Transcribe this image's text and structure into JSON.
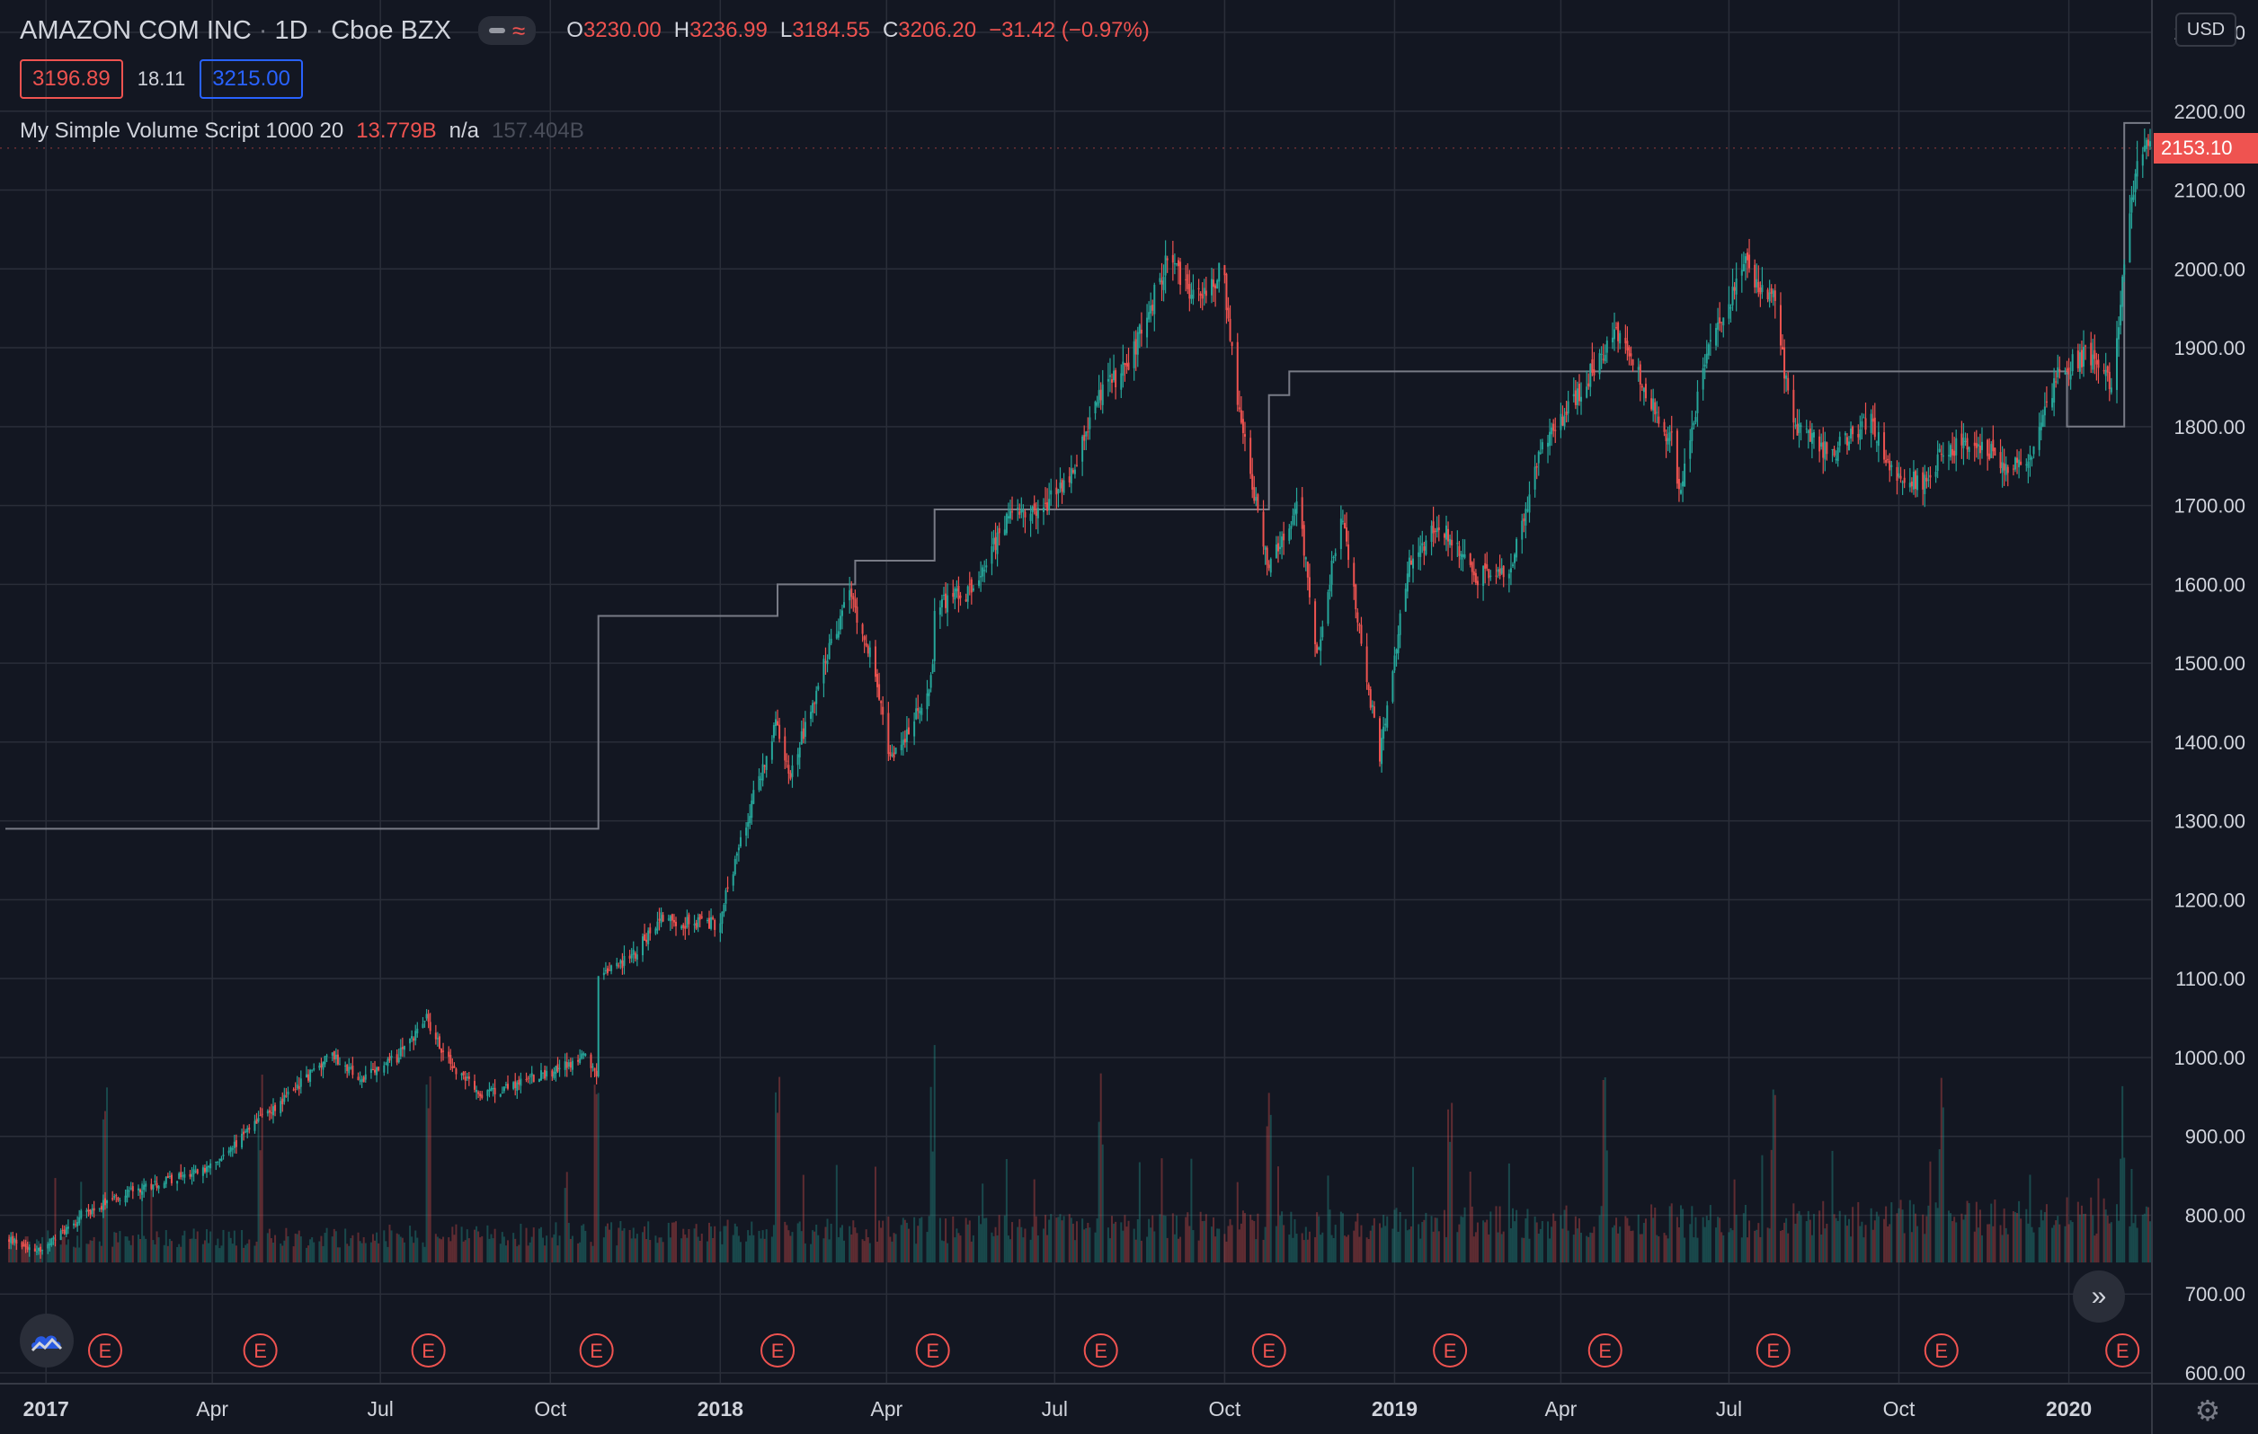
{
  "header": {
    "symbol": "AMAZON COM INC",
    "interval": "1D",
    "exchange": "Cboe BZX",
    "ohlc": {
      "o_label": "O",
      "o": "3230.00",
      "h_label": "H",
      "h": "3236.99",
      "l_label": "L",
      "l": "3184.55",
      "c_label": "C",
      "c": "3206.20",
      "change": "−31.42 (−0.97%)"
    }
  },
  "quote": {
    "bid": "3196.89",
    "spread": "18.11",
    "ask": "3215.00"
  },
  "study": {
    "name": "My Simple Volume Script 1000 20",
    "value1": "13.779B",
    "value2": "n/a",
    "value3": "157.404B"
  },
  "currency": "USD",
  "last_price_label": "2153.10",
  "colors": {
    "background": "#131722",
    "grid": "#2a2e39",
    "up": "#26a69a",
    "down": "#ef5350",
    "text": "#d1d4dc",
    "step_line": "#787b86"
  },
  "icons": {
    "logo": "cloud-logo-icon",
    "scroll": "double-chevron-right-icon",
    "settings": "gear-icon"
  },
  "chart_data": {
    "type": "candlestick",
    "title": "",
    "ylim": [
      600,
      2300
    ],
    "yticks": [
      "2300.00",
      "2200.00",
      "2100.00",
      "2000.00",
      "1900.00",
      "1800.00",
      "1700.00",
      "1600.00",
      "1500.00",
      "1400.00",
      "1300.00",
      "1200.00",
      "1100.00",
      "1000.00",
      "900.00",
      "800.00",
      "700.00",
      "600.00"
    ],
    "x_axis": {
      "labels": [
        "2017",
        "Apr",
        "Jul",
        "Oct",
        "2018",
        "Apr",
        "Jul",
        "Oct",
        "2019",
        "Apr",
        "Jul",
        "Oct",
        "2020"
      ],
      "label_dates": [
        "2017-01-01",
        "2017-04-01",
        "2017-07-01",
        "2017-10-01",
        "2018-01-01",
        "2018-04-01",
        "2018-07-01",
        "2018-10-01",
        "2019-01-01",
        "2019-04-01",
        "2019-07-01",
        "2019-10-01",
        "2020-01-01"
      ],
      "range": [
        "2016-12-10",
        "2020-02-14"
      ]
    },
    "price_path": [
      [
        "2016-12-10",
        770
      ],
      [
        "2016-12-30",
        755
      ],
      [
        "2017-01-20",
        800
      ],
      [
        "2017-02-15",
        830
      ],
      [
        "2017-03-15",
        850
      ],
      [
        "2017-03-31",
        860
      ],
      [
        "2017-04-20",
        905
      ],
      [
        "2017-05-15",
        960
      ],
      [
        "2017-06-05",
        1005
      ],
      [
        "2017-06-20",
        970
      ],
      [
        "2017-07-10",
        1000
      ],
      [
        "2017-07-26",
        1050
      ],
      [
        "2017-08-05",
        1000
      ],
      [
        "2017-08-25",
        950
      ],
      [
        "2017-09-15",
        970
      ],
      [
        "2017-10-05",
        985
      ],
      [
        "2017-10-20",
        1000
      ],
      [
        "2017-10-26",
        975
      ],
      [
        "2017-10-27",
        1100
      ],
      [
        "2017-11-15",
        1130
      ],
      [
        "2017-11-30",
        1180
      ],
      [
        "2017-12-15",
        1170
      ],
      [
        "2017-12-31",
        1170
      ],
      [
        "2018-01-15",
        1300
      ],
      [
        "2018-01-31",
        1420
      ],
      [
        "2018-02-08",
        1360
      ],
      [
        "2018-02-28",
        1510
      ],
      [
        "2018-03-12",
        1590
      ],
      [
        "2018-03-25",
        1500
      ],
      [
        "2018-04-02",
        1380
      ],
      [
        "2018-04-15",
        1420
      ],
      [
        "2018-04-26",
        1490
      ],
      [
        "2018-04-27",
        1575
      ],
      [
        "2018-05-15",
        1590
      ],
      [
        "2018-06-05",
        1680
      ],
      [
        "2018-06-25",
        1700
      ],
      [
        "2018-07-10",
        1740
      ],
      [
        "2018-07-26",
        1840
      ],
      [
        "2018-08-10",
        1880
      ],
      [
        "2018-08-31",
        2010
      ],
      [
        "2018-09-15",
        1960
      ],
      [
        "2018-09-30",
        2000
      ],
      [
        "2018-10-10",
        1800
      ],
      [
        "2018-10-25",
        1620
      ],
      [
        "2018-11-10",
        1700
      ],
      [
        "2018-11-20",
        1510
      ],
      [
        "2018-12-03",
        1690
      ],
      [
        "2018-12-24",
        1380
      ],
      [
        "2019-01-08",
        1620
      ],
      [
        "2019-01-25",
        1680
      ],
      [
        "2019-02-15",
        1610
      ],
      [
        "2019-03-05",
        1620
      ],
      [
        "2019-03-20",
        1760
      ],
      [
        "2019-04-10",
        1840
      ],
      [
        "2019-04-30",
        1920
      ],
      [
        "2019-05-10",
        1880
      ],
      [
        "2019-05-31",
        1780
      ],
      [
        "2019-06-04",
        1720
      ],
      [
        "2019-06-20",
        1900
      ],
      [
        "2019-07-10",
        2005
      ],
      [
        "2019-07-25",
        1960
      ],
      [
        "2019-08-05",
        1800
      ],
      [
        "2019-08-25",
        1765
      ],
      [
        "2019-09-15",
        1810
      ],
      [
        "2019-09-30",
        1735
      ],
      [
        "2019-10-15",
        1730
      ],
      [
        "2019-10-25",
        1770
      ],
      [
        "2019-11-10",
        1785
      ],
      [
        "2019-11-30",
        1750
      ],
      [
        "2019-12-10",
        1750
      ],
      [
        "2019-12-27",
        1870
      ],
      [
        "2020-01-10",
        1890
      ],
      [
        "2020-01-25",
        1855
      ],
      [
        "2020-01-31",
        2020
      ],
      [
        "2020-02-07",
        2140
      ],
      [
        "2020-02-14",
        2153
      ]
    ],
    "step_line": [
      [
        "2016-12-10",
        1290
      ],
      [
        "2017-10-27",
        1290
      ],
      [
        "2017-10-27",
        1560
      ],
      [
        "2018-02-01",
        1560
      ],
      [
        "2018-02-01",
        1600
      ],
      [
        "2018-03-15",
        1600
      ],
      [
        "2018-03-15",
        1630
      ],
      [
        "2018-04-27",
        1630
      ],
      [
        "2018-04-27",
        1695
      ],
      [
        "2018-10-25",
        1695
      ],
      [
        "2018-10-25",
        1840
      ],
      [
        "2018-11-05",
        1840
      ],
      [
        "2018-11-05",
        1870
      ],
      [
        "2019-12-31",
        1870
      ],
      [
        "2019-12-31",
        1800
      ],
      [
        "2020-01-31",
        1800
      ],
      [
        "2020-01-31",
        2185
      ],
      [
        "2020-02-14",
        2185
      ]
    ],
    "volume": {
      "baseline_price": 740,
      "max_bar_price": 1025,
      "colors": [
        "#26a69a",
        "#ef5350"
      ]
    },
    "earnings": {
      "label": "E",
      "dates": [
        "2017-02-02",
        "2017-04-27",
        "2017-07-27",
        "2017-10-26",
        "2018-02-01",
        "2018-04-26",
        "2018-07-26",
        "2018-10-25",
        "2019-01-31",
        "2019-04-25",
        "2019-07-25",
        "2019-10-24",
        "2020-01-30"
      ]
    },
    "last_price": 2153.1
  }
}
